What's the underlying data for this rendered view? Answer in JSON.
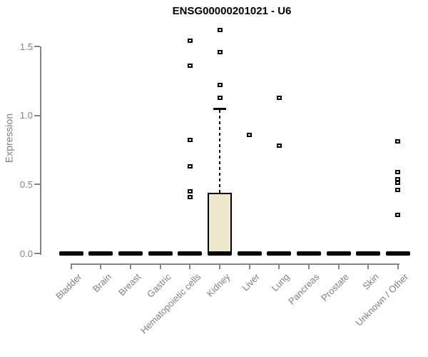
{
  "title": "ENSG00000201021 - U6",
  "colors": {
    "axis": "#858585",
    "tick_text": "#818181",
    "title_text": "#000000",
    "box_fill": "#EDE8CD",
    "box_border": "#000000",
    "zero_bar": "#000000",
    "outlier_fill": "#FFFFFF",
    "outlier_border": "#000000"
  },
  "chart_data": {
    "type": "boxplot",
    "title": "ENSG00000201021 - U6",
    "xlabel": "",
    "ylabel": "Expression",
    "ylim": [
      0,
      1.5
    ],
    "y_ticks": [
      0,
      0.5,
      1.0,
      1.5
    ],
    "y_tick_labels": [
      "0.0",
      "0.5",
      "1.0",
      "1.5"
    ],
    "grid": false,
    "legend": false,
    "categories": [
      "Bladder",
      "Brain",
      "Breast",
      "Gastric",
      "Hematopoietic cells",
      "Kidney",
      "Liver",
      "Lung",
      "Pancreas",
      "Prostate",
      "Skin",
      "Unknown / Other"
    ],
    "series": [
      {
        "name": "Bladder",
        "median": 0,
        "q1": 0,
        "q3": 0,
        "whisker_low": 0,
        "whisker_high": 0,
        "outliers": []
      },
      {
        "name": "Brain",
        "median": 0,
        "q1": 0,
        "q3": 0,
        "whisker_low": 0,
        "whisker_high": 0,
        "outliers": []
      },
      {
        "name": "Breast",
        "median": 0,
        "q1": 0,
        "q3": 0,
        "whisker_low": 0,
        "whisker_high": 0,
        "outliers": []
      },
      {
        "name": "Gastric",
        "median": 0,
        "q1": 0,
        "q3": 0,
        "whisker_low": 0,
        "whisker_high": 0,
        "outliers": []
      },
      {
        "name": "Hematopoietic cells",
        "median": 0,
        "q1": 0,
        "q3": 0,
        "whisker_low": 0,
        "whisker_high": 0,
        "outliers": [
          1.54,
          1.36,
          0.82,
          0.63,
          0.45,
          0.41
        ]
      },
      {
        "name": "Kidney",
        "median": 0.01,
        "q1": 0.01,
        "q3": 0.44,
        "whisker_low": 0,
        "whisker_high": 1.05,
        "outliers": [
          1.62,
          1.46,
          1.22,
          1.13
        ]
      },
      {
        "name": "Liver",
        "median": 0,
        "q1": 0,
        "q3": 0,
        "whisker_low": 0,
        "whisker_high": 0,
        "outliers": [
          0.86
        ]
      },
      {
        "name": "Lung",
        "median": 0,
        "q1": 0,
        "q3": 0,
        "whisker_low": 0,
        "whisker_high": 0,
        "outliers": [
          1.13,
          0.78
        ]
      },
      {
        "name": "Pancreas",
        "median": 0,
        "q1": 0,
        "q3": 0,
        "whisker_low": 0,
        "whisker_high": 0,
        "outliers": []
      },
      {
        "name": "Prostate",
        "median": 0,
        "q1": 0,
        "q3": 0,
        "whisker_low": 0,
        "whisker_high": 0,
        "outliers": []
      },
      {
        "name": "Skin",
        "median": 0,
        "q1": 0,
        "q3": 0,
        "whisker_low": 0,
        "whisker_high": 0,
        "outliers": []
      },
      {
        "name": "Unknown / Other",
        "median": 0,
        "q1": 0,
        "q3": 0,
        "whisker_low": 0,
        "whisker_high": 0,
        "outliers": [
          0.81,
          0.59,
          0.54,
          0.51,
          0.46,
          0.28
        ]
      }
    ]
  }
}
